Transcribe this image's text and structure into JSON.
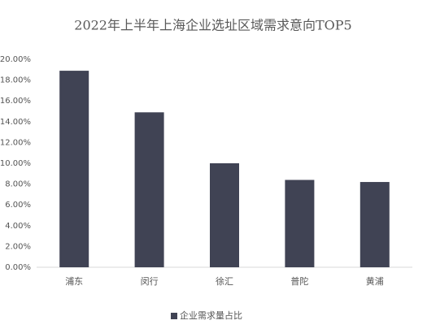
{
  "chart_data": {
    "type": "bar",
    "title": "2022年上半年上海企业选址区域需求意向TOP5",
    "categories": [
      "浦东",
      "闵行",
      "徐汇",
      "普陀",
      "黄浦"
    ],
    "series": [
      {
        "name": "企业需求量占比",
        "color": "#404354",
        "values": [
          18.9,
          14.9,
          10.0,
          8.4,
          8.2
        ]
      }
    ],
    "ylim": [
      0,
      20
    ],
    "yticks": [
      {
        "value": 0,
        "label": "0.00%"
      },
      {
        "value": 2,
        "label": "2.00%"
      },
      {
        "value": 4,
        "label": "4.00%"
      },
      {
        "value": 6,
        "label": "6.00%"
      },
      {
        "value": 8,
        "label": "8.00%"
      },
      {
        "value": 10,
        "label": "10.00%"
      },
      {
        "value": 12,
        "label": "12.00%"
      },
      {
        "value": 14,
        "label": "14.00%"
      },
      {
        "value": 16,
        "label": "16.00%"
      },
      {
        "value": 18,
        "label": "18.00%"
      },
      {
        "value": 20,
        "label": "20.00%"
      }
    ],
    "grid": false,
    "legend": "bottom"
  }
}
